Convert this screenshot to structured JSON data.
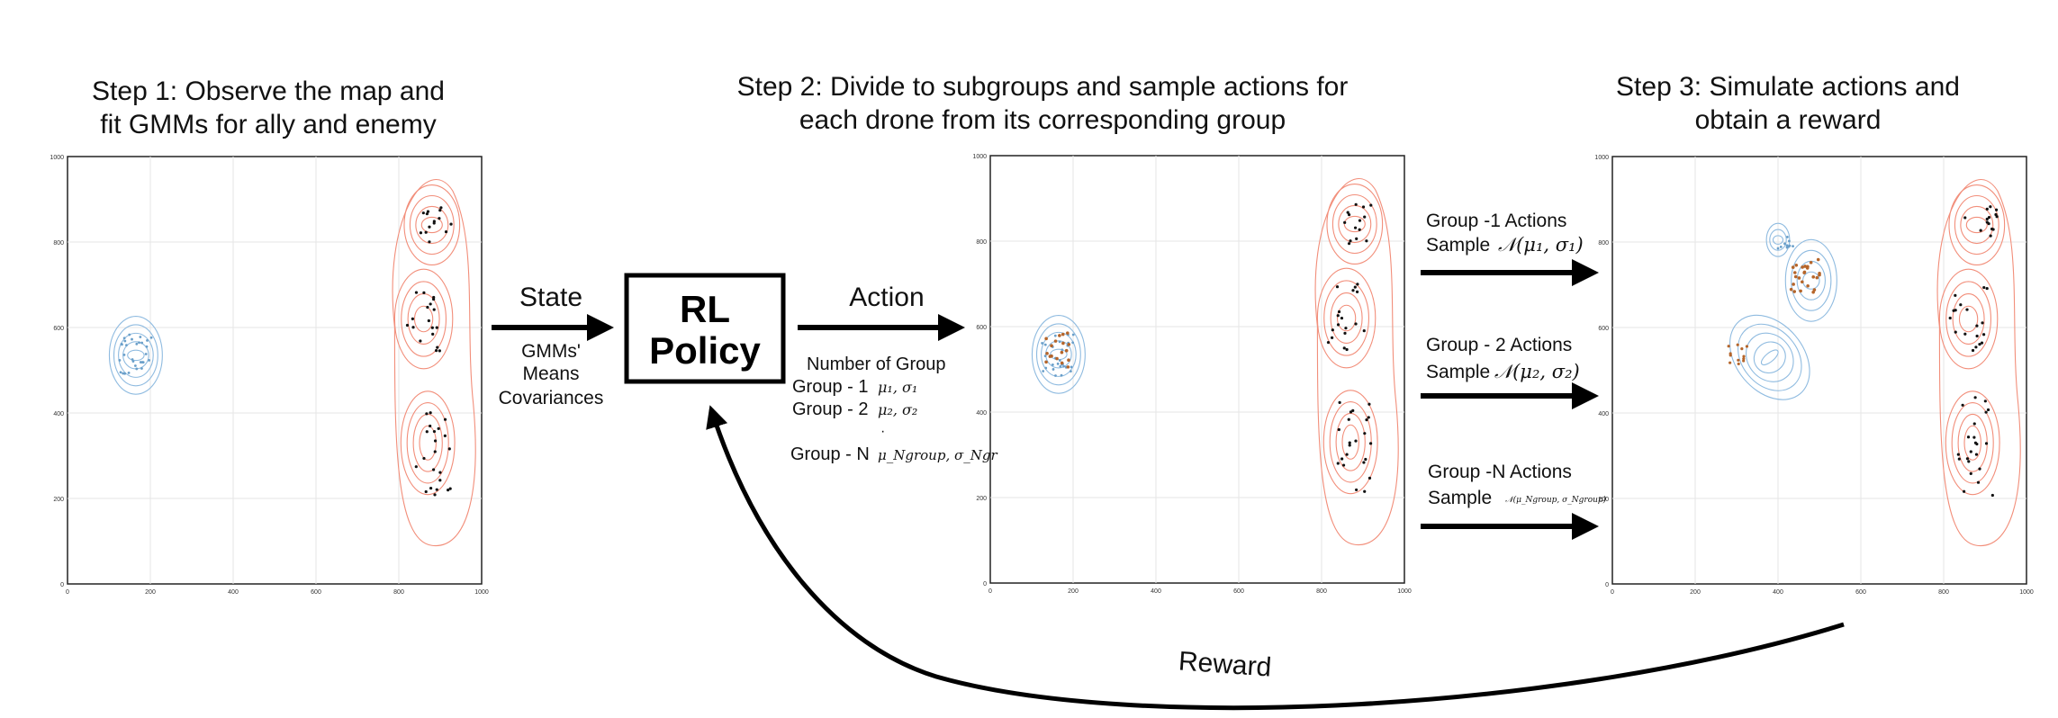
{
  "steps": [
    {
      "line1": "Step 1: Observe the map and",
      "line2": "fit GMMs for ally and enemy"
    },
    {
      "line1": "Step 2: Divide to subgroups and sample actions for",
      "line2": "each drone from its corresponding group"
    },
    {
      "line1": "Step 3: Simulate actions and",
      "line2": "obtain a reward"
    }
  ],
  "state": {
    "label": "State",
    "sub1": "GMMs'",
    "sub2": "Means",
    "sub3": "Covariances"
  },
  "policy": {
    "line1": "RL",
    "line2": "Policy"
  },
  "action": {
    "label": "Action",
    "header": "Number of Group",
    "g1_label": "Group - 1",
    "g1_param": "μ₁, σ₁",
    "g2_label": "Group - 2",
    "g2_param": "μ₂, σ₂",
    "dots": "·",
    "gn_label": "Group - N",
    "gn_param": "μ_Ngroup, σ_Ngr"
  },
  "sampling": {
    "g1_title": "Group -1 Actions",
    "g1_prefix": "Sample",
    "g1_formula": "𝒩(μ₁, σ₁)",
    "g2_title": "Group - 2 Actions",
    "g2_prefix": "Sample",
    "g2_formula": "𝒩(μ₂, σ₂)",
    "gn_title": "Group -N Actions",
    "gn_prefix": "Sample",
    "gn_formula": "𝒩(μ_Ngroup, σ_Ngroup)"
  },
  "reward": "Reward",
  "axes": {
    "y_ticks": [
      "1000",
      "800",
      "600",
      "400",
      "200",
      "0"
    ],
    "x_ticks": [
      "0",
      "200",
      "400",
      "600",
      "800",
      "1000"
    ]
  },
  "colors": {
    "enemy_contour": "#f28e7a",
    "ally_contour": "#8fbbe0",
    "enemy_points": "#111111",
    "ally_points": "#6a9fc9",
    "sampled_points": "#b5652a",
    "grid": "#e6e6e6",
    "arrow": "#000000"
  }
}
